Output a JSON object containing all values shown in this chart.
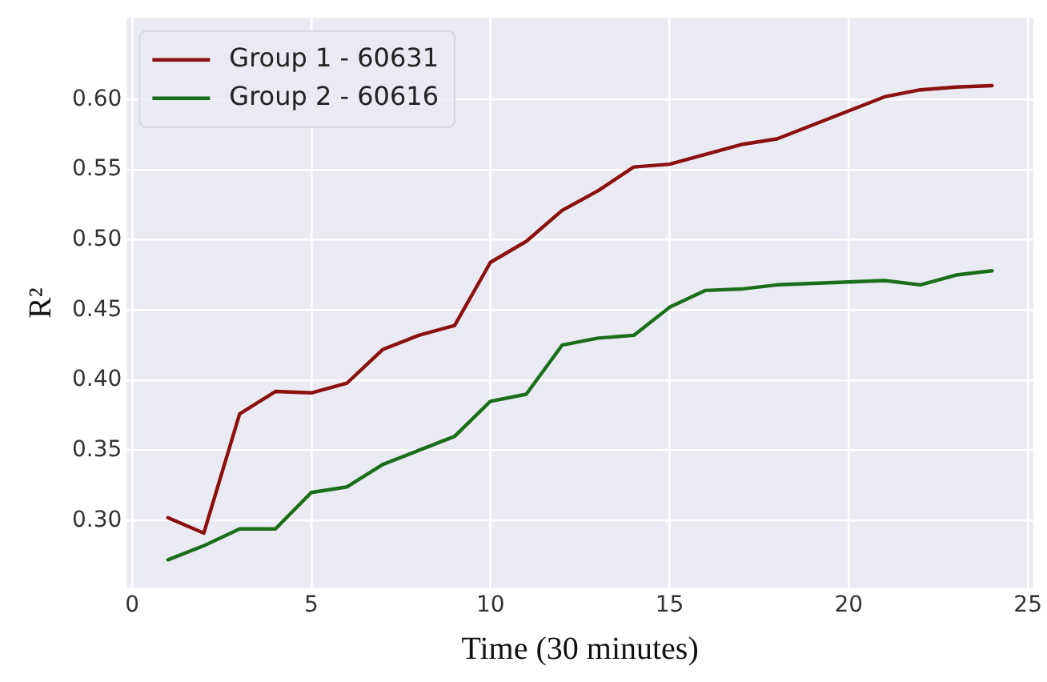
{
  "chart_data": {
    "type": "line",
    "xlabel": "Time (30 minutes)",
    "ylabel": "R²",
    "x": [
      1,
      2,
      3,
      4,
      5,
      6,
      7,
      8,
      9,
      10,
      11,
      12,
      13,
      14,
      15,
      16,
      17,
      18,
      19,
      20,
      21,
      22,
      23,
      24
    ],
    "series": [
      {
        "name": "Group 1 - 60631",
        "color": "#8b1010",
        "values": [
          0.302,
          0.291,
          0.376,
          0.392,
          0.391,
          0.398,
          0.422,
          0.432,
          0.439,
          0.484,
          0.499,
          0.521,
          0.535,
          0.552,
          0.554,
          0.561,
          0.568,
          0.572,
          0.582,
          0.592,
          0.602,
          0.607,
          0.609,
          0.61
        ]
      },
      {
        "name": "Group 2 - 60616",
        "color": "#1a6e1a",
        "values": [
          0.272,
          0.282,
          0.294,
          0.294,
          0.32,
          0.324,
          0.34,
          0.35,
          0.36,
          0.385,
          0.39,
          0.425,
          0.43,
          0.432,
          0.452,
          0.464,
          0.465,
          0.468,
          0.469,
          0.47,
          0.471,
          0.468,
          0.475,
          0.478
        ]
      }
    ],
    "xlim": [
      -0.15,
      25.15
    ],
    "xticks": [
      0,
      5,
      10,
      15,
      20,
      25
    ],
    "ylim": [
      0.252,
      0.658
    ],
    "yticks": [
      {
        "value": 0.3,
        "label": "0.30"
      },
      0.35,
      {
        "value": 0.4,
        "label": "0.40"
      },
      0.45,
      {
        "value": 0.5,
        "label": "0.50"
      },
      0.55,
      {
        "value": 0.6,
        "label": "0.60"
      }
    ],
    "grid": true,
    "legend": "top left",
    "marker": "none",
    "line_style": "solid"
  }
}
